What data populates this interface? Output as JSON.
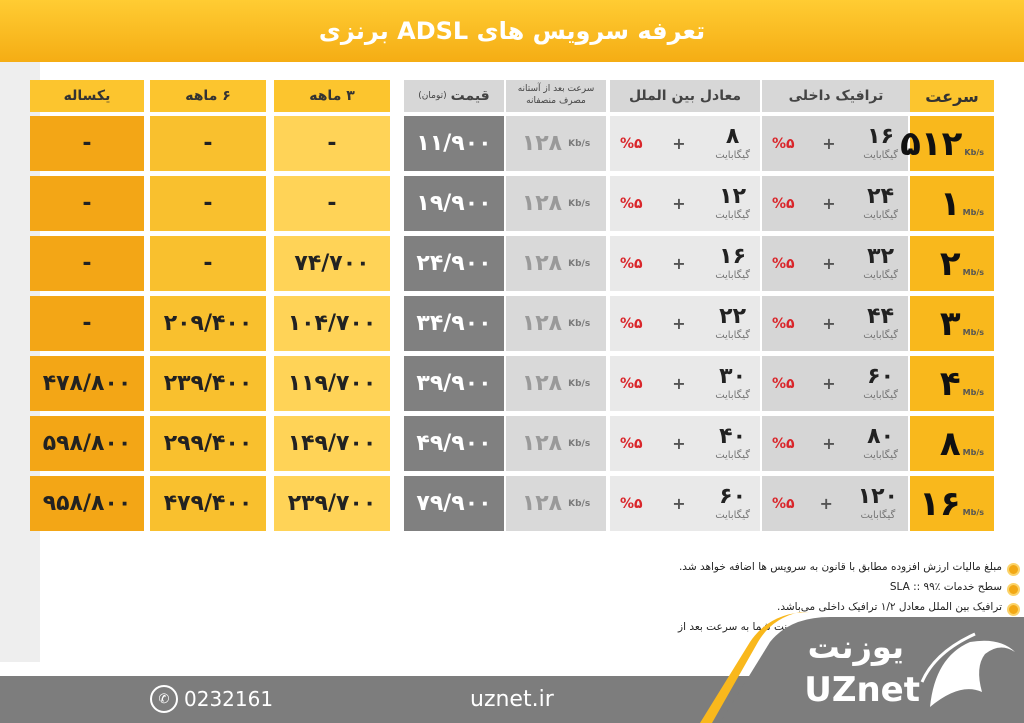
{
  "title": "تعرفه سرویس های ADSL برنزی",
  "headers": {
    "speed": "سرعت",
    "domestic": "ترافیک داخلی",
    "international": "معادل بین الملل",
    "after_threshold": "سرعت بعد از آستانه مصرف منصفانه",
    "price": "قیمت",
    "price_unit": "(تومان)",
    "m3": "۳ ماهه",
    "m6": "۶ ماهه",
    "year": "یکساله"
  },
  "units": {
    "gig": "گیگابایت",
    "kbs": "Kb/s",
    "mbs": "Mb/s"
  },
  "plus": "+",
  "pct": "%۵",
  "rows": [
    {
      "speed": "۵۱۲",
      "speed_unit": "Kb/s",
      "domestic": "۱۶",
      "intl": "۸",
      "after": "۱۲۸",
      "price": "۱۱/۹۰۰",
      "m3": "-",
      "m6": "-",
      "year": "-"
    },
    {
      "speed": "۱",
      "speed_unit": "Mb/s",
      "domestic": "۲۴",
      "intl": "۱۲",
      "after": "۱۲۸",
      "price": "۱۹/۹۰۰",
      "m3": "-",
      "m6": "-",
      "year": "-"
    },
    {
      "speed": "۲",
      "speed_unit": "Mb/s",
      "domestic": "۳۲",
      "intl": "۱۶",
      "after": "۱۲۸",
      "price": "۲۴/۹۰۰",
      "m3": "۷۴/۷۰۰",
      "m6": "-",
      "year": "-"
    },
    {
      "speed": "۳",
      "speed_unit": "Mb/s",
      "domestic": "۴۴",
      "intl": "۲۲",
      "after": "۱۲۸",
      "price": "۳۴/۹۰۰",
      "m3": "۱۰۴/۷۰۰",
      "m6": "۲۰۹/۴۰۰",
      "year": "-"
    },
    {
      "speed": "۴",
      "speed_unit": "Mb/s",
      "domestic": "۶۰",
      "intl": "۳۰",
      "after": "۱۲۸",
      "price": "۳۹/۹۰۰",
      "m3": "۱۱۹/۷۰۰",
      "m6": "۲۳۹/۴۰۰",
      "year": "۴۷۸/۸۰۰"
    },
    {
      "speed": "۸",
      "speed_unit": "Mb/s",
      "domestic": "۸۰",
      "intl": "۴۰",
      "after": "۱۲۸",
      "price": "۴۹/۹۰۰",
      "m3": "۱۴۹/۷۰۰",
      "m6": "۲۹۹/۴۰۰",
      "year": "۵۹۸/۸۰۰"
    },
    {
      "speed": "۱۶",
      "speed_unit": "Mb/s",
      "domestic": "۱۲۰",
      "intl": "۶۰",
      "after": "۱۲۸",
      "price": "۷۹/۹۰۰",
      "m3": "۲۳۹/۷۰۰",
      "m6": "۴۷۹/۴۰۰",
      "year": "۹۵۸/۸۰۰"
    }
  ],
  "notes": [
    "مبلغ مالیات ارزش افزوده مطابق با قانون به سرویس ها اضافه خواهد شد.",
    "سطح خدمات SLA :: ۹۹٪",
    "ترافیک بین الملل معادل ۱/۲ ترافیک داخلی می‌باشد.",
    "پس از اتمام آستانه مصرف منصفانه، سرعت اینترنت شما به سرعت بعد از آستانه مصرف کاهش پیدا می‌کند."
  ],
  "footer": {
    "phone": "0232161",
    "website": "uznet.ir",
    "logo_fa": "یوزنت",
    "logo_en": "UZnet"
  },
  "colors": {
    "accent": "#f9b81c",
    "price_bg": "#808080",
    "footer_bg": "#7d7d7d",
    "pct_red": "#d9262b"
  }
}
